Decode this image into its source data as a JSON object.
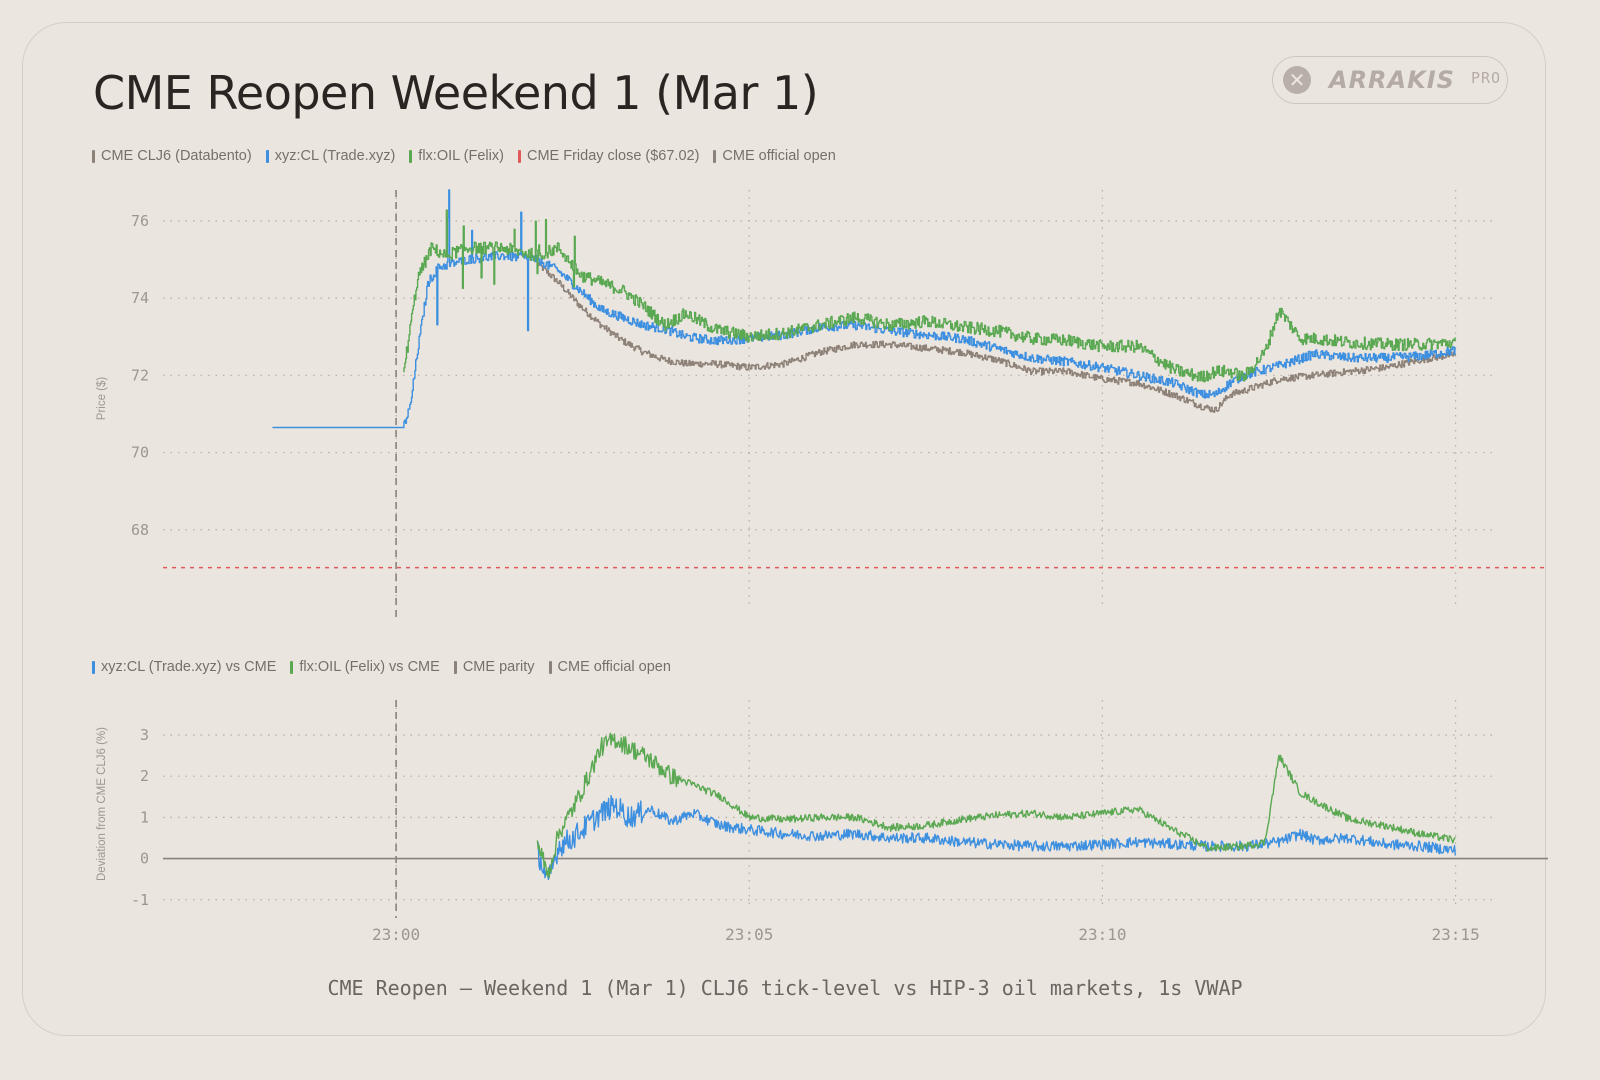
{
  "title": "CME Reopen Weekend 1 (Mar 1)",
  "brand": {
    "name": "ARRAKIS",
    "tier": "PRO"
  },
  "caption": "CME Reopen — Weekend 1 (Mar 1) CLJ6 tick-level vs HIP-3 oil markets, 1s VWAP",
  "colors": {
    "cme": "#8d8178",
    "xyz": "#3d8fe0",
    "felix": "#5aa852",
    "friday_close": "#e05a5a",
    "official_open": "#8a827b",
    "grid": "#b6ada5",
    "tick": "#9e968f"
  },
  "legend_top": [
    {
      "label": "CME CLJ6 (Databento)",
      "color": "#8d8178"
    },
    {
      "label": "xyz:CL (Trade.xyz)",
      "color": "#3d8fe0"
    },
    {
      "label": "flx:OIL (Felix)",
      "color": "#5aa852"
    },
    {
      "label": "CME Friday close ($67.02)",
      "color": "#e05a5a"
    },
    {
      "label": "CME official open",
      "color": "#8a827b"
    }
  ],
  "legend_bottom": [
    {
      "label": "xyz:CL (Trade.xyz) vs CME",
      "color": "#3d8fe0"
    },
    {
      "label": "flx:OIL (Felix) vs CME",
      "color": "#5aa852"
    },
    {
      "label": "CME parity",
      "color": "#8a827b"
    },
    {
      "label": "CME official open",
      "color": "#8a827b"
    }
  ],
  "chart_data": [
    {
      "type": "line",
      "ylabel": "Price ($)",
      "xlabel": "",
      "x_unit": "minutes after 23:00",
      "xlim": [
        -3.3,
        15.6
      ],
      "ylim": [
        66.0,
        76.8
      ],
      "x_ticks": [
        {
          "v": 0,
          "label": "23:00"
        },
        {
          "v": 5,
          "label": "23:05"
        },
        {
          "v": 10,
          "label": "23:10"
        },
        {
          "v": 15,
          "label": "23:15"
        }
      ],
      "y_ticks": [
        68,
        70,
        72,
        74,
        76
      ],
      "grid": true,
      "reference_lines": {
        "friday_close": 67.02,
        "official_open_x": 0
      },
      "series": [
        {
          "name": "CME CLJ6 (Databento)",
          "x": [
            2.0,
            2.3,
            2.6,
            2.9,
            3.2,
            3.5,
            3.8,
            4.1,
            4.5,
            5.0,
            5.5,
            6.0,
            6.5,
            7.0,
            7.5,
            8.0,
            8.5,
            9.0,
            9.5,
            10.0,
            10.5,
            11.0,
            11.4,
            11.6,
            11.8,
            12.0,
            12.5,
            13.0,
            13.5,
            14.0,
            14.5,
            15.0
          ],
          "y": [
            74.9,
            74.4,
            73.8,
            73.3,
            72.9,
            72.6,
            72.4,
            72.3,
            72.3,
            72.2,
            72.3,
            72.6,
            72.8,
            72.8,
            72.7,
            72.6,
            72.4,
            72.1,
            72.1,
            71.9,
            71.8,
            71.5,
            71.2,
            71.1,
            71.5,
            71.6,
            71.9,
            72.0,
            72.1,
            72.2,
            72.4,
            72.55
          ]
        },
        {
          "name": "xyz:CL (Trade.xyz)",
          "x": [
            -1.75,
            0.1,
            0.2,
            0.3,
            0.45,
            0.6,
            1.0,
            1.5,
            2.0,
            2.3,
            2.6,
            2.9,
            3.2,
            3.5,
            3.8,
            4.1,
            4.5,
            5.0,
            5.5,
            6.0,
            6.5,
            7.0,
            7.5,
            8.0,
            8.5,
            9.0,
            9.5,
            10.0,
            10.5,
            11.0,
            11.4,
            11.6,
            11.8,
            12.0,
            12.5,
            13.0,
            13.5,
            14.0,
            14.5,
            15.0
          ],
          "y": [
            70.65,
            70.65,
            71.2,
            72.6,
            74.4,
            74.8,
            75.0,
            75.1,
            75.0,
            74.7,
            74.2,
            73.7,
            73.5,
            73.3,
            73.2,
            73.0,
            72.9,
            72.95,
            73.05,
            73.25,
            73.3,
            73.15,
            73.05,
            72.95,
            72.7,
            72.45,
            72.35,
            72.2,
            72.0,
            71.8,
            71.5,
            71.5,
            71.8,
            72.0,
            72.25,
            72.55,
            72.45,
            72.45,
            72.5,
            72.65
          ]
        },
        {
          "name": "flx:OIL (Felix)",
          "x": [
            0.1,
            0.3,
            0.5,
            0.7,
            1.0,
            1.5,
            2.0,
            2.3,
            2.6,
            2.9,
            3.2,
            3.5,
            3.8,
            4.1,
            4.5,
            5.0,
            5.5,
            6.0,
            6.5,
            7.0,
            7.5,
            8.0,
            8.5,
            9.0,
            9.5,
            10.0,
            10.5,
            11.0,
            11.4,
            11.6,
            11.8,
            12.0,
            12.3,
            12.5,
            12.8,
            13.0,
            13.5,
            14.0,
            14.5,
            15.0
          ],
          "y": [
            72.0,
            74.5,
            75.3,
            75.1,
            75.3,
            75.3,
            75.1,
            75.3,
            74.6,
            74.4,
            74.2,
            73.8,
            73.3,
            73.6,
            73.2,
            73.0,
            73.1,
            73.3,
            73.5,
            73.3,
            73.4,
            73.25,
            73.15,
            72.95,
            72.9,
            72.75,
            72.75,
            72.15,
            71.95,
            72.1,
            72.1,
            71.95,
            72.6,
            73.7,
            72.95,
            72.95,
            72.85,
            72.8,
            72.8,
            72.85
          ]
        }
      ]
    },
    {
      "type": "line",
      "ylabel": "Deviation from CME CLJ6 (%)",
      "xlabel": "",
      "x_unit": "minutes after 23:00",
      "xlim": [
        -3.3,
        15.6
      ],
      "ylim": [
        -1.2,
        3.85
      ],
      "x_ticks": [
        {
          "v": 0,
          "label": "23:00"
        },
        {
          "v": 5,
          "label": "23:05"
        },
        {
          "v": 10,
          "label": "23:10"
        },
        {
          "v": 15,
          "label": "23:15"
        }
      ],
      "y_ticks": [
        -1,
        0,
        1,
        2,
        3
      ],
      "grid": true,
      "reference_lines": {
        "cme_parity": 0,
        "official_open_x": 0
      },
      "series": [
        {
          "name": "xyz:CL (Trade.xyz) vs CME",
          "x": [
            2.0,
            2.15,
            2.3,
            2.5,
            2.7,
            2.9,
            3.1,
            3.3,
            3.6,
            3.9,
            4.2,
            4.6,
            5.0,
            5.5,
            6.0,
            6.5,
            7.0,
            7.5,
            8.0,
            8.5,
            9.0,
            9.5,
            10.0,
            10.5,
            11.0,
            11.5,
            12.0,
            12.5,
            12.8,
            13.0,
            13.5,
            14.0,
            14.5,
            15.0
          ],
          "y": [
            0.2,
            -0.6,
            0.3,
            0.5,
            0.8,
            1.1,
            1.3,
            1.0,
            1.2,
            0.9,
            1.1,
            0.8,
            0.7,
            0.6,
            0.55,
            0.6,
            0.5,
            0.5,
            0.4,
            0.35,
            0.3,
            0.3,
            0.35,
            0.4,
            0.35,
            0.3,
            0.3,
            0.4,
            0.6,
            0.45,
            0.5,
            0.35,
            0.3,
            0.2
          ]
        },
        {
          "name": "flx:OIL (Felix) vs CME",
          "x": [
            2.0,
            2.15,
            2.3,
            2.5,
            2.7,
            2.9,
            3.1,
            3.3,
            3.6,
            3.9,
            4.2,
            4.6,
            5.0,
            5.5,
            6.0,
            6.5,
            7.0,
            7.5,
            8.0,
            8.5,
            9.0,
            9.5,
            10.0,
            10.5,
            11.0,
            11.5,
            12.0,
            12.3,
            12.5,
            12.8,
            13.0,
            13.5,
            14.0,
            14.5,
            15.0
          ],
          "y": [
            0.4,
            -0.4,
            0.6,
            1.2,
            1.9,
            2.7,
            2.9,
            2.7,
            2.4,
            2.0,
            1.8,
            1.5,
            1.0,
            0.95,
            1.0,
            1.0,
            0.75,
            0.8,
            0.95,
            1.05,
            1.1,
            1.0,
            1.1,
            1.2,
            0.7,
            0.25,
            0.3,
            0.4,
            2.5,
            1.6,
            1.4,
            0.95,
            0.8,
            0.6,
            0.45
          ]
        }
      ]
    }
  ]
}
